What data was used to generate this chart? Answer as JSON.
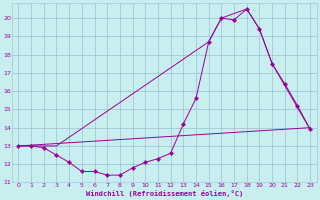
{
  "xlabel": "Windchill (Refroidissement éolien,°C)",
  "background_color": "#c8eef0",
  "grid_color": "#a0c8d8",
  "line_color": "#990099",
  "xlim": [
    -0.5,
    23.5
  ],
  "ylim": [
    11,
    20.8
  ],
  "yticks": [
    11,
    12,
    13,
    14,
    15,
    16,
    17,
    18,
    19,
    20
  ],
  "xticks": [
    0,
    1,
    2,
    3,
    4,
    5,
    6,
    7,
    8,
    9,
    10,
    11,
    12,
    13,
    14,
    15,
    16,
    17,
    18,
    19,
    20,
    21,
    22,
    23
  ],
  "line1_x": [
    0,
    1,
    2,
    3,
    4,
    5,
    6,
    7,
    8,
    9,
    10,
    11,
    12,
    13,
    14,
    15,
    16,
    17,
    18,
    19,
    20,
    21,
    22,
    23
  ],
  "line1_y": [
    13.0,
    13.0,
    12.9,
    12.5,
    12.1,
    11.6,
    11.6,
    11.4,
    11.4,
    11.8,
    12.1,
    12.3,
    12.6,
    14.2,
    15.6,
    18.7,
    20.0,
    19.9,
    20.5,
    19.4,
    17.5,
    16.4,
    15.2,
    13.9
  ],
  "line2_x": [
    0,
    23
  ],
  "line2_y": [
    13.0,
    14.0
  ],
  "line3_x": [
    0,
    3,
    15,
    16,
    18,
    19,
    20,
    23
  ],
  "line3_y": [
    13.0,
    13.0,
    18.7,
    20.0,
    20.5,
    19.4,
    17.5,
    13.9
  ]
}
